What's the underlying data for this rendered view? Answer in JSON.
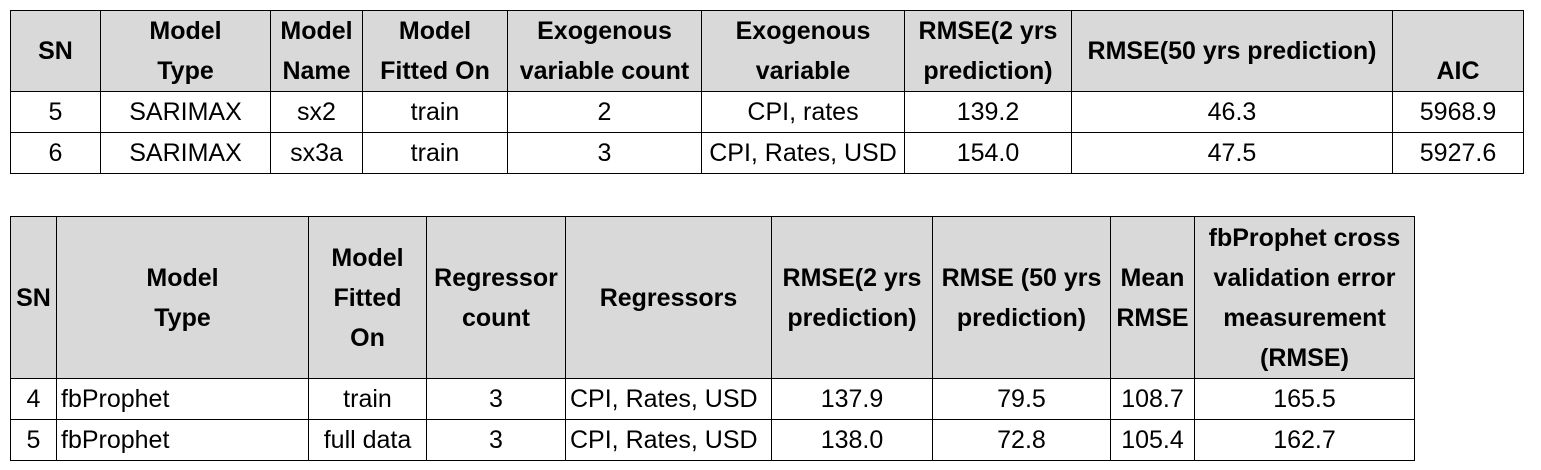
{
  "table1": {
    "headers": [
      [
        "SN"
      ],
      [
        "Model",
        "Type"
      ],
      [
        "Model",
        "Name"
      ],
      [
        "Model",
        "Fitted On"
      ],
      [
        "Exogenous",
        "variable count"
      ],
      [
        "Exogenous",
        "variable"
      ],
      [
        "RMSE(2 yrs",
        "prediction)"
      ],
      [
        "RMSE(50 yrs prediction)"
      ],
      [
        "AIC"
      ]
    ],
    "rows": [
      [
        "5",
        "SARIMAX",
        "sx2",
        "train",
        "2",
        "CPI, rates",
        "139.2",
        "46.3",
        "5968.9"
      ],
      [
        "6",
        "SARIMAX",
        "sx3a",
        "train",
        "3",
        "CPI, Rates, USD",
        "154.0",
        "47.5",
        "5927.6"
      ]
    ]
  },
  "table2": {
    "headers": [
      [
        "SN"
      ],
      [
        "Model",
        "Type"
      ],
      [
        "Model",
        "Fitted",
        "On"
      ],
      [
        "Regressor",
        "count"
      ],
      [
        "Regressors"
      ],
      [
        "RMSE(2 yrs",
        "prediction)"
      ],
      [
        "RMSE (50 yrs",
        "prediction)"
      ],
      [
        "Mean",
        "RMSE"
      ],
      [
        "fbProphet cross",
        "validation error",
        "measurement",
        "(RMSE)"
      ]
    ],
    "rows": [
      [
        "4",
        "fbProphet",
        "train",
        "3",
        "CPI, Rates, USD",
        "137.9",
        "79.5",
        "108.7",
        "165.5"
      ],
      [
        "5",
        "fbProphet",
        "full data",
        "3",
        "CPI, Rates, USD",
        "138.0",
        "72.8",
        "105.4",
        "162.7"
      ]
    ]
  }
}
